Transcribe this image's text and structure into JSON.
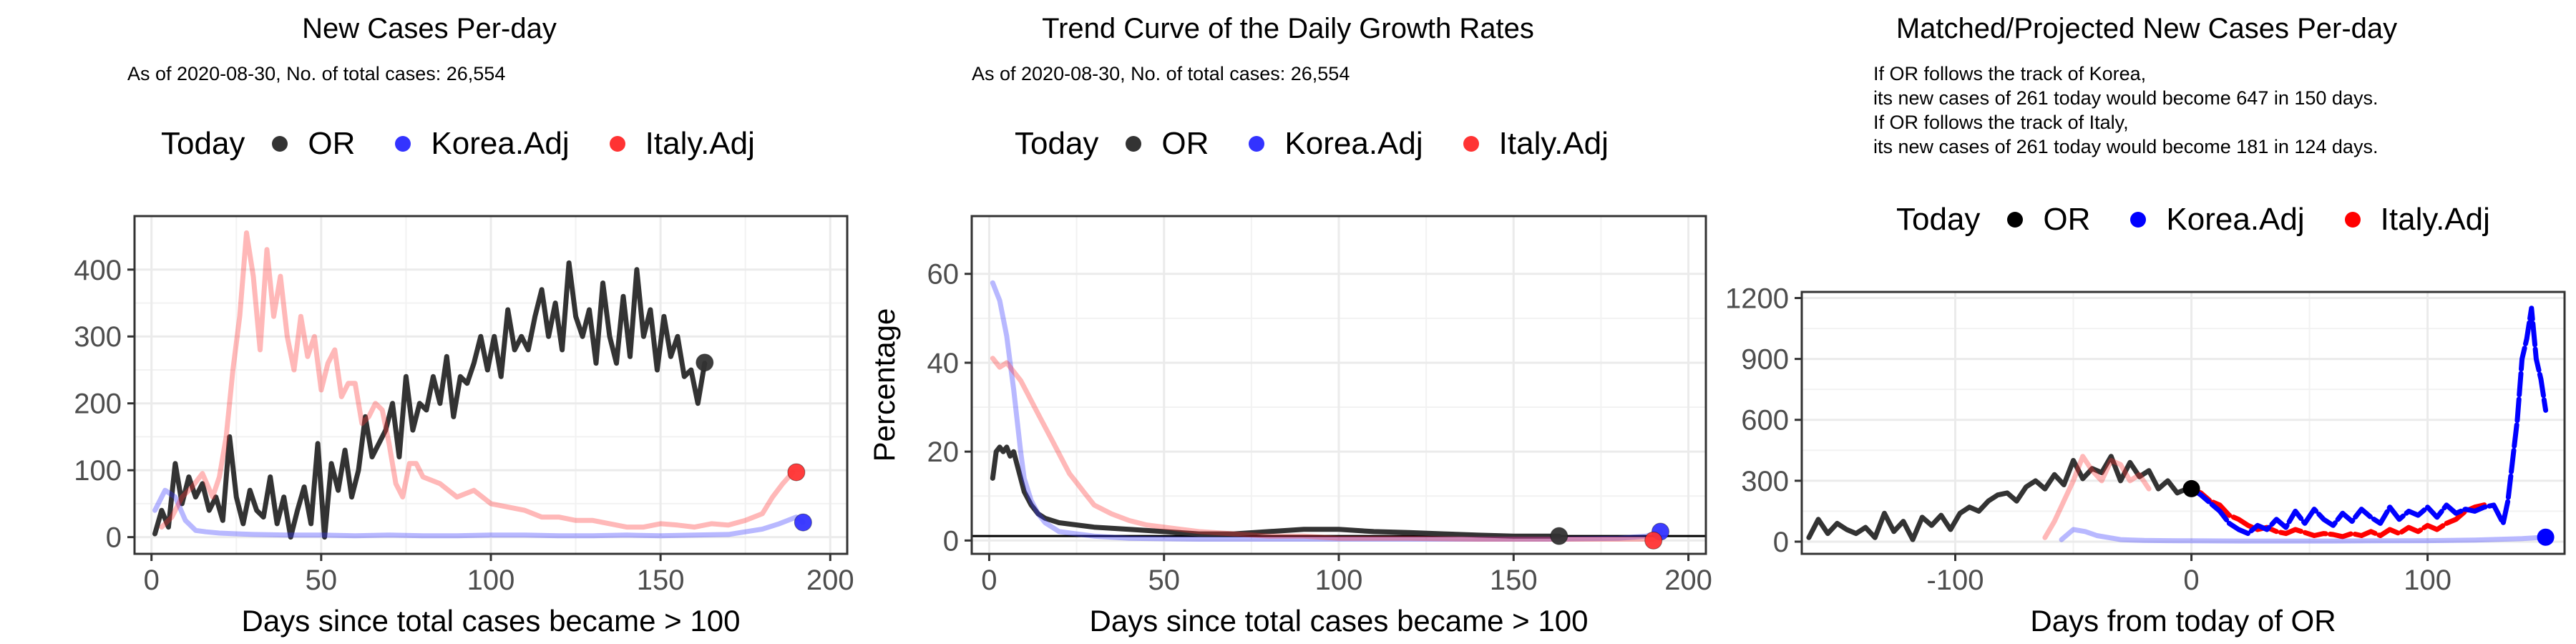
{
  "chart_data": [
    {
      "type": "line",
      "title": "New Cases Per-day",
      "subtitle": "As of 2020-08-30, No. of total cases: 26,554",
      "legend_title": "Today",
      "legend": [
        {
          "name": "OR",
          "color": "#333333"
        },
        {
          "name": "Korea.Adj",
          "color": "#3333ff"
        },
        {
          "name": "Italy.Adj",
          "color": "#ff3333"
        }
      ],
      "legend_position": "top",
      "xlabel": "Days since total cases became > 100",
      "ylabel": "",
      "xlim": [
        -5,
        205
      ],
      "ylim": [
        -25,
        480
      ],
      "xticks": [
        0,
        50,
        100,
        150,
        200
      ],
      "yticks": [
        0,
        100,
        200,
        300,
        400
      ],
      "grid": true,
      "series": [
        {
          "name": "OR",
          "color": "#333333",
          "x": [
            1,
            3,
            5,
            7,
            9,
            11,
            13,
            15,
            17,
            19,
            21,
            23,
            25,
            27,
            29,
            31,
            33,
            35,
            37,
            39,
            41,
            43,
            45,
            47,
            49,
            51,
            53,
            55,
            57,
            59,
            61,
            63,
            65,
            67,
            69,
            71,
            73,
            75,
            77,
            79,
            81,
            83,
            85,
            87,
            89,
            91,
            93,
            95,
            97,
            99,
            101,
            103,
            105,
            107,
            109,
            111,
            113,
            115,
            117,
            119,
            121,
            123,
            125,
            127,
            129,
            131,
            133,
            135,
            137,
            139,
            141,
            143,
            145,
            147,
            149,
            151,
            153,
            155,
            157,
            159,
            161,
            163
          ],
          "y": [
            5,
            40,
            15,
            110,
            50,
            90,
            60,
            80,
            40,
            60,
            25,
            150,
            60,
            20,
            70,
            40,
            30,
            90,
            20,
            60,
            0,
            40,
            75,
            20,
            140,
            0,
            110,
            70,
            130,
            60,
            100,
            180,
            120,
            140,
            160,
            200,
            120,
            240,
            160,
            200,
            190,
            240,
            200,
            270,
            180,
            240,
            230,
            260,
            300,
            250,
            300,
            240,
            340,
            280,
            300,
            280,
            330,
            370,
            300,
            350,
            280,
            410,
            330,
            300,
            340,
            260,
            380,
            300,
            260,
            360,
            270,
            400,
            300,
            340,
            250,
            330,
            270,
            300,
            240,
            250,
            200,
            260
          ],
          "today": {
            "x": 163,
            "y": 261
          }
        },
        {
          "name": "Korea.Adj",
          "color": "#3333ff",
          "alpha": 0.35,
          "x": [
            1,
            4,
            7,
            10,
            13,
            16,
            20,
            25,
            30,
            40,
            50,
            60,
            70,
            80,
            90,
            100,
            110,
            120,
            130,
            140,
            150,
            160,
            170,
            180,
            185,
            190,
            192
          ],
          "y": [
            40,
            70,
            60,
            25,
            10,
            8,
            6,
            5,
            4,
            3,
            3,
            2,
            3,
            2,
            2,
            3,
            3,
            2,
            2,
            3,
            2,
            3,
            4,
            12,
            20,
            30,
            22
          ],
          "today": {
            "x": 192,
            "y": 22
          }
        },
        {
          "name": "Italy.Adj",
          "color": "#ff3333",
          "alpha": 0.35,
          "x": [
            3,
            6,
            9,
            12,
            15,
            18,
            20,
            22,
            24,
            26,
            28,
            30,
            32,
            34,
            36,
            38,
            40,
            42,
            44,
            46,
            48,
            50,
            52,
            54,
            56,
            58,
            60,
            62,
            64,
            66,
            68,
            70,
            72,
            74,
            76,
            78,
            80,
            85,
            90,
            95,
            100,
            105,
            110,
            115,
            120,
            125,
            130,
            135,
            140,
            145,
            150,
            155,
            160,
            165,
            170,
            175,
            180,
            183,
            186,
            189
          ],
          "y": [
            15,
            30,
            60,
            75,
            95,
            60,
            90,
            150,
            250,
            330,
            455,
            390,
            280,
            430,
            330,
            390,
            300,
            250,
            330,
            270,
            300,
            220,
            260,
            280,
            210,
            230,
            230,
            170,
            180,
            200,
            190,
            140,
            80,
            60,
            110,
            110,
            90,
            80,
            60,
            70,
            50,
            45,
            40,
            30,
            30,
            25,
            25,
            20,
            15,
            15,
            20,
            18,
            15,
            20,
            18,
            25,
            35,
            60,
            80,
            97
          ],
          "today": {
            "x": 190,
            "y": 97
          }
        }
      ]
    },
    {
      "type": "line",
      "title": "Trend Curve of the Daily Growth Rates",
      "subtitle": "As of 2020-08-30, No. of total cases: 26,554",
      "legend_title": "Today",
      "legend": [
        {
          "name": "OR",
          "color": "#333333"
        },
        {
          "name": "Korea.Adj",
          "color": "#3333ff"
        },
        {
          "name": "Italy.Adj",
          "color": "#ff3333"
        }
      ],
      "legend_position": "top",
      "xlabel": "Days since total cases became > 100",
      "ylabel": "Percentage",
      "xlim": [
        -5,
        205
      ],
      "ylim": [
        -3,
        73
      ],
      "xticks": [
        0,
        50,
        100,
        150,
        200
      ],
      "yticks": [
        0,
        20,
        40,
        60
      ],
      "hline": 1,
      "grid": true,
      "series": [
        {
          "name": "OR",
          "color": "#333333",
          "x": [
            1,
            2,
            3,
            4,
            5,
            6,
            7,
            8,
            9,
            10,
            12,
            14,
            16,
            18,
            20,
            25,
            30,
            40,
            50,
            60,
            70,
            80,
            90,
            100,
            110,
            120,
            130,
            140,
            150,
            160,
            163
          ],
          "y": [
            14,
            20,
            21,
            20,
            21,
            19,
            20,
            17,
            14,
            11,
            8,
            6,
            5,
            4.5,
            4,
            3.5,
            3,
            2.5,
            2,
            1.5,
            1.5,
            2,
            2.5,
            2.5,
            2,
            1.8,
            1.5,
            1.2,
            1,
            1,
            1
          ],
          "today": {
            "x": 163,
            "y": 1
          }
        },
        {
          "name": "Korea.Adj",
          "color": "#3333ff",
          "alpha": 0.35,
          "x": [
            1,
            2,
            3,
            4,
            5,
            6,
            7,
            8,
            9,
            10,
            12,
            14,
            16,
            18,
            20,
            25,
            30,
            40,
            60,
            80,
            100,
            120,
            140,
            160,
            180,
            188,
            192
          ],
          "y": [
            58,
            56,
            54,
            50,
            46,
            40,
            34,
            27,
            20,
            14,
            9,
            6,
            4,
            3,
            2,
            1.5,
            1,
            0.5,
            0.3,
            0.3,
            0.3,
            0.3,
            0.3,
            0.3,
            0.5,
            1,
            2
          ],
          "today": {
            "x": 192,
            "y": 2
          }
        },
        {
          "name": "Italy.Adj",
          "color": "#ff3333",
          "alpha": 0.35,
          "x": [
            1,
            3,
            5,
            7,
            9,
            11,
            13,
            15,
            17,
            19,
            21,
            23,
            25,
            27,
            30,
            35,
            40,
            45,
            50,
            55,
            60,
            70,
            80,
            90,
            100,
            120,
            140,
            160,
            180,
            190
          ],
          "y": [
            41,
            39,
            40,
            38,
            36,
            33,
            30,
            27,
            24,
            21,
            18,
            15,
            13,
            11,
            8,
            6,
            4.5,
            3.5,
            3,
            2.5,
            2,
            1.5,
            1,
            1,
            0.5,
            0.5,
            0.3,
            0.3,
            0.3,
            0.3
          ],
          "today": {
            "x": 190,
            "y": 0
          }
        }
      ]
    },
    {
      "type": "line",
      "title": "Matched/Projected New Cases Per-day",
      "annotations": [
        "If OR follows the track of Korea,",
        "its new cases of 261 today would become 647 in 150 days.",
        "If OR follows the track of Italy,",
        "its new cases of 261 today would become 181 in 124 days."
      ],
      "legend_title": "Today",
      "legend": [
        {
          "name": "OR",
          "color": "#000000"
        },
        {
          "name": "Korea.Adj",
          "color": "#0000ff"
        },
        {
          "name": "Italy.Adj",
          "color": "#ff0000"
        }
      ],
      "legend_position": "top",
      "xlabel": "Days from today of OR",
      "ylabel": "",
      "xlim": [
        -165,
        158
      ],
      "ylim": [
        -60,
        1230
      ],
      "xticks": [
        -100,
        0,
        100
      ],
      "yticks": [
        0,
        300,
        600,
        900,
        1200
      ],
      "grid": true,
      "series": [
        {
          "name": "OR",
          "color": "#333333",
          "x": [
            -162,
            -158,
            -154,
            -150,
            -146,
            -142,
            -138,
            -134,
            -130,
            -126,
            -122,
            -118,
            -114,
            -110,
            -106,
            -102,
            -98,
            -94,
            -90,
            -86,
            -82,
            -78,
            -74,
            -70,
            -66,
            -62,
            -58,
            -54,
            -50,
            -46,
            -42,
            -38,
            -34,
            -30,
            -26,
            -22,
            -18,
            -14,
            -10,
            -6,
            -2,
            0
          ],
          "y": [
            20,
            110,
            40,
            90,
            60,
            40,
            70,
            20,
            140,
            50,
            100,
            10,
            120,
            80,
            130,
            60,
            140,
            170,
            150,
            200,
            230,
            240,
            200,
            270,
            300,
            260,
            330,
            280,
            400,
            310,
            360,
            340,
            420,
            300,
            390,
            320,
            350,
            260,
            300,
            240,
            260,
            261
          ]
        },
        {
          "name": "Italy.Adj",
          "color": "#ff0000",
          "dashed": true,
          "x": [
            0,
            4,
            8,
            12,
            16,
            20,
            24,
            28,
            32,
            36,
            40,
            44,
            48,
            52,
            56,
            60,
            64,
            68,
            72,
            76,
            80,
            84,
            88,
            92,
            96,
            100,
            104,
            108,
            112,
            116,
            120,
            124
          ],
          "y": [
            261,
            240,
            200,
            180,
            130,
            110,
            80,
            60,
            70,
            50,
            40,
            60,
            45,
            30,
            40,
            35,
            25,
            40,
            30,
            50,
            30,
            60,
            40,
            70,
            50,
            80,
            60,
            90,
            110,
            150,
            170,
            181
          ]
        },
        {
          "name": "Korea.Adj",
          "color": "#0000ff",
          "dashed": true,
          "x": [
            0,
            4,
            8,
            12,
            16,
            20,
            24,
            28,
            32,
            36,
            40,
            44,
            48,
            52,
            56,
            60,
            64,
            68,
            72,
            76,
            80,
            84,
            88,
            92,
            96,
            100,
            104,
            108,
            112,
            116,
            120,
            124,
            128,
            132,
            134,
            136,
            138,
            140,
            142,
            144,
            146,
            148,
            150
          ],
          "y": [
            261,
            230,
            190,
            150,
            90,
            60,
            40,
            80,
            60,
            110,
            70,
            150,
            90,
            160,
            110,
            80,
            140,
            100,
            160,
            120,
            90,
            170,
            110,
            150,
            130,
            170,
            120,
            180,
            140,
            160,
            150,
            170,
            180,
            90,
            200,
            400,
            600,
            900,
            1000,
            1150,
            900,
            800,
            647
          ]
        },
        {
          "name": "Italy.Adj (matched history)",
          "color": "#ff3333",
          "alpha": 0.35,
          "x": [
            -62,
            -58,
            -54,
            -50,
            -46,
            -42,
            -38,
            -34,
            -30,
            -26,
            -22,
            -18
          ],
          "y": [
            20,
            100,
            200,
            300,
            420,
            350,
            300,
            400,
            380,
            300,
            330,
            260
          ]
        },
        {
          "name": "Korea.Adj (matched history)",
          "color": "#3333ff",
          "alpha": 0.35,
          "x": [
            -55,
            -50,
            -45,
            -40,
            -35,
            -30,
            -25,
            -20,
            -10,
            0,
            20,
            40,
            60,
            80,
            100,
            120,
            140,
            150
          ],
          "y": [
            10,
            60,
            50,
            30,
            20,
            10,
            8,
            6,
            5,
            4,
            3,
            3,
            3,
            4,
            5,
            8,
            15,
            22
          ]
        }
      ],
      "today_points": [
        {
          "name": "OR",
          "x": 0,
          "y": 261,
          "color": "#000000"
        },
        {
          "name": "Korea.Adj",
          "x": 150,
          "y": 22,
          "color": "#0000ff"
        }
      ]
    }
  ],
  "panel1": {
    "title": "New Cases Per-day",
    "subtitle": "As of 2020-08-30, No. of total cases: 26,554",
    "legend_title": "Today",
    "legend_or": "OR",
    "legend_korea": "Korea.Adj",
    "legend_italy": "Italy.Adj"
  },
  "panel2": {
    "title": "Trend Curve of the Daily Growth Rates",
    "subtitle": "As of 2020-08-30, No. of total cases: 26,554",
    "legend_title": "Today",
    "legend_or": "OR",
    "legend_korea": "Korea.Adj",
    "legend_italy": "Italy.Adj"
  },
  "panel3": {
    "title": "Matched/Projected New Cases Per-day",
    "note1": "If OR follows the track of Korea,",
    "note2": "its new cases of 261 today would become 647 in 150 days.",
    "note3": "If OR follows the track of Italy,",
    "note4": "its new cases of 261 today would become 181 in 124 days.",
    "legend_title": "Today",
    "legend_or": "OR",
    "legend_korea": "Korea.Adj",
    "legend_italy": "Italy.Adj"
  },
  "colors": {
    "or": "#333333",
    "korea": "#3333ff",
    "italy": "#ff3333",
    "grid": "#ebebeb",
    "frame": "#333333"
  }
}
